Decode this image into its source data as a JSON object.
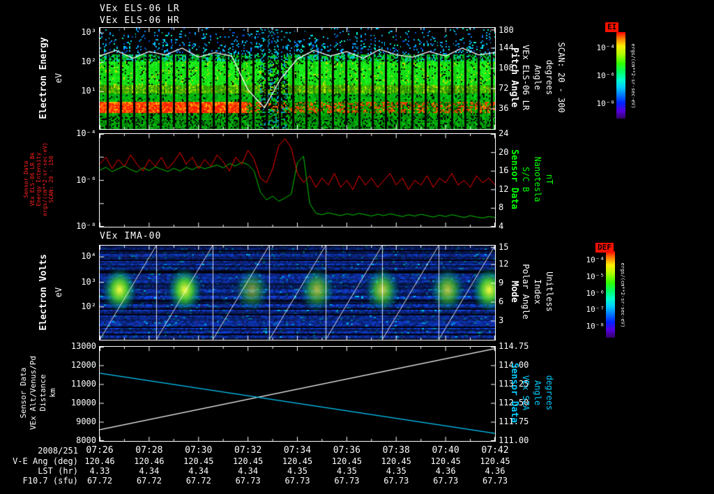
{
  "page": {
    "background": "#000000"
  },
  "panel1": {
    "title_line1": "VEx ELS-06 LR",
    "title_line2": "VEx ELS-06 HR",
    "left_label": "Electron Energy",
    "left_unit": "eV",
    "yticks_left": [
      "10³",
      "10²",
      "10¹"
    ],
    "yticks_right": [
      "180",
      "144",
      "108",
      "72",
      "36"
    ],
    "right_label_lines": [
      "Pitch Angle",
      "VEx ELS-06 LR",
      "Angle",
      "degrees",
      "SCAN: 20 - 300"
    ]
  },
  "panel2": {
    "left_label_lines": [
      "Sensor Data",
      "VEx ELS-06 LR Bk",
      "Energy Intensity",
      "ergs/(cm**2-sr-sec-eV)",
      "SCAN: 20 - 150"
    ],
    "yticks_left": [
      "10⁻⁴",
      "10⁻⁶",
      "10⁻⁸"
    ],
    "yticks_right": [
      "24",
      "20",
      "16",
      "12",
      "8",
      "4"
    ],
    "right_label_lines": [
      "Sensor Data",
      "S/C B",
      "Nanotesla",
      "nT"
    ]
  },
  "panel3": {
    "title": "VEx IMA-00",
    "left_label": "Electron Volts",
    "left_unit": "eV",
    "yticks_left": [
      "10⁴",
      "10³",
      "10²"
    ],
    "yticks_right": [
      "15",
      "12",
      "9",
      "6",
      "3"
    ],
    "right_label_lines": [
      "Mode",
      "Polar Angle",
      "Index",
      "Unitless"
    ]
  },
  "panel4": {
    "left_label_lines": [
      "Sensor Data",
      "VEx Alt/Venus/Pd",
      "Distance",
      "km"
    ],
    "yticks_left": [
      "13000",
      "12000",
      "11000",
      "10000",
      "9000",
      "8000"
    ],
    "yticks_right": [
      "114.75",
      "114.00",
      "113.25",
      "112.50",
      "111.75",
      "111.00"
    ],
    "right_label_lines": [
      "Sensor Data",
      "VEx SZA",
      "Angle",
      "degrees"
    ]
  },
  "colorbar_ei": {
    "label": "EI",
    "ticks": [
      "10⁻⁴",
      "10⁻⁶",
      "10⁻⁸"
    ],
    "unit": "ergs/(cm**2-sr-sec-eV)"
  },
  "colorbar_def": {
    "label": "DEF",
    "ticks": [
      "10⁻⁴",
      "10⁻⁵",
      "10⁻⁶",
      "10⁻⁷",
      "10⁻⁸"
    ],
    "unit": "ergs/(cm**2-sr-sec-eV)"
  },
  "time_axis": {
    "date_label": "2008/251",
    "times": [
      "07:26",
      "07:28",
      "07:30",
      "07:32",
      "07:34",
      "07:36",
      "07:38",
      "07:40",
      "07:42"
    ],
    "rows": [
      {
        "label": "V-E Ang (deg)",
        "values": [
          "120.46",
          "120.46",
          "120.45",
          "120.45",
          "120.45",
          "120.45",
          "120.45",
          "120.45",
          "120.45"
        ]
      },
      {
        "label": "LST (hr)",
        "values": [
          "4.33",
          "4.34",
          "4.34",
          "4.34",
          "4.35",
          "4.35",
          "4.35",
          "4.36",
          "4.36"
        ]
      },
      {
        "label": "F10.7 (sfu)",
        "values": [
          "67.72",
          "67.72",
          "67.72",
          "67.73",
          "67.73",
          "67.73",
          "67.73",
          "67.73",
          "67.73"
        ]
      }
    ]
  },
  "chart_data": [
    {
      "type": "heatmap",
      "panel": "els_electron_spectrogram",
      "title": "VEx ELS-06 LR / VEx ELS-06 HR",
      "ylabel": "Electron Energy (eV)",
      "y_scale": "log",
      "y_range_eV": [
        3,
        1000
      ],
      "x_range": [
        "07:26",
        "07:42"
      ],
      "color_scale_label": "EI",
      "color_unit": "ergs/(cm**2-sr-sec-eV)",
      "color_range": [
        1e-08,
        0.0001
      ],
      "right_axis": {
        "label": "Pitch Angle VEx ELS-06 LR",
        "unit": "degrees",
        "range": [
          0,
          180
        ],
        "scan": "20 - 300"
      },
      "features": [
        "intense red-orange band near 5-10 eV, strongest before 07:32",
        "broad green flux 10-100 eV across full interval",
        "sparse cyan/blue speckle above ~200 eV",
        "regular narrow vertical data gaps about every 30 s",
        "darker disturbed interval 07:32-07:33"
      ],
      "overlay": {
        "name": "pitch-angle-trace",
        "unit": "degrees",
        "y_range": [
          0,
          180
        ],
        "values": [
          130,
          140,
          126,
          138,
          132,
          144,
          128,
          136,
          130,
          70,
          38,
          90,
          125,
          140,
          130,
          138,
          126,
          142,
          132,
          128,
          138,
          130,
          144,
          132,
          136
        ]
      }
    },
    {
      "type": "line",
      "panel": "els_intensity_and_b_field",
      "x_range": [
        "07:26",
        "07:42"
      ],
      "left_axis": {
        "label": "VEx ELS-06 LR Bk Energy Intensity",
        "unit": "ergs/(cm**2-sr-sec-eV)",
        "scale": "log",
        "range": [
          1e-08,
          0.0001
        ],
        "scan": "20 - 150"
      },
      "right_axis": {
        "label": "S/C B",
        "unit": "nT",
        "range": [
          4,
          24
        ]
      },
      "series": [
        {
          "name": "ELS-06 LR Bk Energy Intensity",
          "color": "#ff0000",
          "axis": "left",
          "log10_values": [
            -5.3,
            -5.0,
            -5.5,
            -5.1,
            -5.4,
            -4.9,
            -5.3,
            -5.6,
            -5.1,
            -5.4,
            -5.0,
            -5.5,
            -5.2,
            -4.8,
            -5.3,
            -5.0,
            -5.5,
            -5.1,
            -5.4,
            -4.9,
            -5.2,
            -5.6,
            -5.0,
            -5.3,
            -4.7,
            -5.1,
            -5.9,
            -6.1,
            -5.5,
            -4.5,
            -4.2,
            -4.6,
            -5.7,
            -6.1,
            -5.8,
            -6.3,
            -5.9,
            -6.2,
            -5.7,
            -6.3,
            -6.0,
            -6.4,
            -5.8,
            -6.2,
            -5.9,
            -6.3,
            -6.0,
            -5.7,
            -6.2,
            -5.9,
            -6.4,
            -6.0,
            -6.2,
            -5.8,
            -6.3,
            -5.9,
            -6.1,
            -5.7,
            -6.2,
            -6.0,
            -6.3,
            -5.8,
            -6.1,
            -5.9,
            -6.2
          ]
        },
        {
          "name": "S/C B Nanotesla",
          "color": "#00cc00",
          "axis": "right",
          "values": [
            16.2,
            16.8,
            15.9,
            16.5,
            17.1,
            16.3,
            15.8,
            16.7,
            16.1,
            16.9,
            16.4,
            15.9,
            16.6,
            16.0,
            16.8,
            16.3,
            17.0,
            16.5,
            16.9,
            17.3,
            16.7,
            17.6,
            17.1,
            17.9,
            17.4,
            16.0,
            11.5,
            9.8,
            10.6,
            9.5,
            10.2,
            11.0,
            17.8,
            19.2,
            9.0,
            6.9,
            6.6,
            7.0,
            6.7,
            6.4,
            6.8,
            6.5,
            6.9,
            6.6,
            6.3,
            6.7,
            6.4,
            6.8,
            6.5,
            6.2,
            6.6,
            6.3,
            6.7,
            6.4,
            6.1,
            6.5,
            6.2,
            6.6,
            6.3,
            6.0,
            6.4,
            6.1,
            5.9,
            6.2,
            6.0
          ]
        }
      ]
    },
    {
      "type": "heatmap",
      "panel": "ima_ion_spectrogram",
      "title": "VEx IMA-00",
      "ylabel": "Electron Volts (eV)",
      "y_scale": "log",
      "y_range_eV": [
        10,
        30000
      ],
      "x_range": [
        "07:26",
        "07:42"
      ],
      "color_scale_label": "DEF",
      "color_unit": "ergs/(cm**2-sr-sec-eV)",
      "right_axis": {
        "label": "Mode / Polar Angle Index",
        "unit": "Unitless",
        "range": [
          0,
          15
        ]
      },
      "blobs": [
        {
          "x_frac": 0.05,
          "intensity": 1.0
        },
        {
          "x_frac": 0.215,
          "intensity": 1.0
        },
        {
          "x_frac": 0.385,
          "intensity": 0.55
        },
        {
          "x_frac": 0.55,
          "intensity": 0.7
        },
        {
          "x_frac": 0.715,
          "intensity": 0.8
        },
        {
          "x_frac": 0.88,
          "intensity": 0.75
        },
        {
          "x_frac": 0.985,
          "intensity": 1.0
        }
      ],
      "features": [
        "periodic bright green-yellow ion populations near 100-1000 eV roughly every 2.5 min",
        "blue background flux with horizontal striping",
        "white sawtooth energy-sweep overlay lines",
        "white vertical separators at each sweep cycle"
      ]
    },
    {
      "type": "line",
      "panel": "altitude_and_sza",
      "x_range": [
        "07:26",
        "07:42"
      ],
      "left_axis": {
        "label": "VEx Alt/Venus/Pd Distance",
        "unit": "km",
        "range": [
          8000,
          13000
        ]
      },
      "right_axis": {
        "label": "VEx SZA Angle",
        "unit": "degrees",
        "range": [
          111.0,
          114.75
        ]
      },
      "series": [
        {
          "name": "altitude",
          "color": "#ffffff",
          "axis": "left",
          "x_frac": [
            0,
            1
          ],
          "values": [
            8600,
            12900
          ]
        },
        {
          "name": "solar-zenith-angle",
          "color": "#00ccff",
          "axis": "right",
          "x_frac": [
            0,
            1
          ],
          "values": [
            113.7,
            111.3
          ]
        }
      ]
    }
  ]
}
